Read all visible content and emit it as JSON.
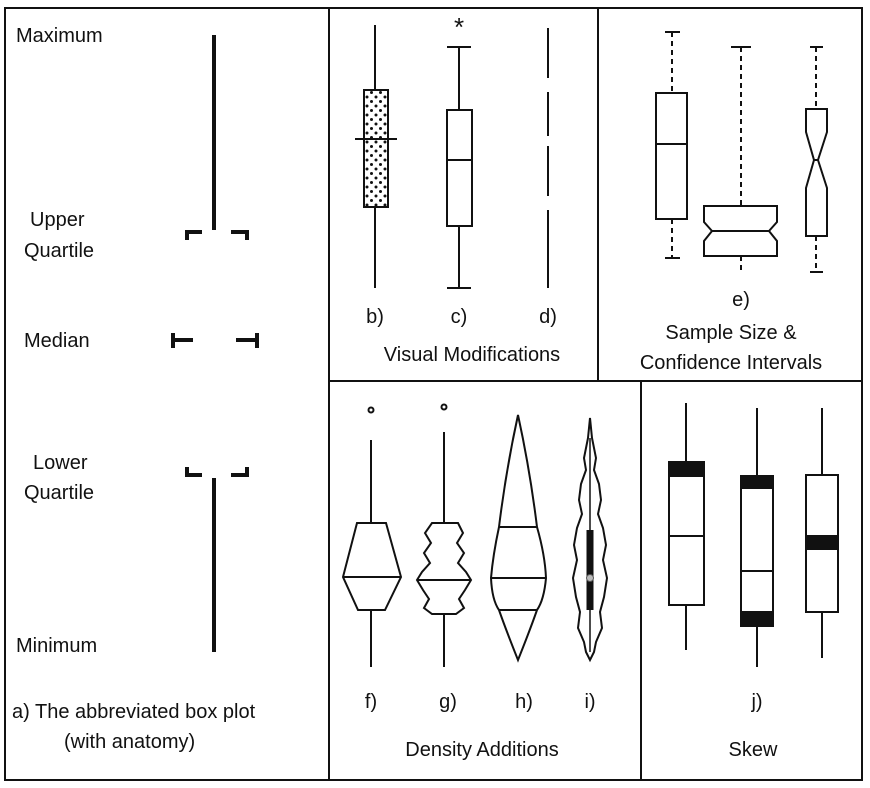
{
  "panel_a": {
    "maximum": "Maximum",
    "upper": "Upper",
    "quartile_upper": "Quartile",
    "median": "Median",
    "lower": "Lower",
    "quartile_lower": "Quartile",
    "minimum": "Minimum",
    "caption_line1": "a) The abbreviated box plot",
    "caption_line2": "(with anatomy)"
  },
  "visual": {
    "labels": [
      "b)",
      "c)",
      "d)"
    ],
    "title": "Visual Modifications",
    "outlier_symbol": "*"
  },
  "sample": {
    "label": "e)",
    "title_line1": "Sample Size &",
    "title_line2": "Confidence Intervals"
  },
  "density": {
    "labels": [
      "f)",
      "g)",
      "h)",
      "i)"
    ],
    "title": "Density Additions"
  },
  "skew": {
    "label": "j)",
    "title": "Skew"
  },
  "colors": {
    "ink": "#111111",
    "background": "#ffffff"
  }
}
